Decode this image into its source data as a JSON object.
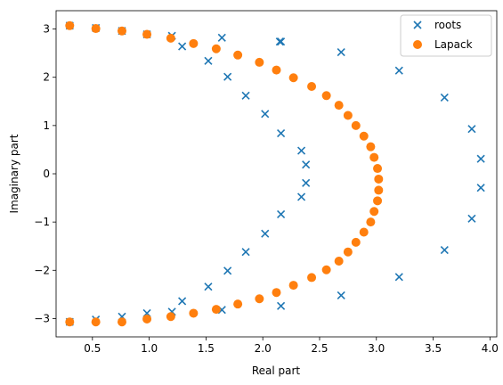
{
  "chart_data": {
    "type": "scatter",
    "xlabel": "Real part",
    "ylabel": "Imaginary part",
    "xlim": [
      0.18,
      4.06
    ],
    "ylim": [
      -3.38,
      3.38
    ],
    "xticks": [
      0.5,
      1.0,
      1.5,
      2.0,
      2.5,
      3.0,
      3.5,
      4.0
    ],
    "xtick_labels": [
      "0.5",
      "1.0",
      "1.5",
      "2.0",
      "2.5",
      "3.0",
      "3.5",
      "4.0"
    ],
    "yticks": [
      -3,
      -2,
      -1,
      0,
      1,
      2,
      3
    ],
    "ytick_labels": [
      "−3",
      "−2",
      "−1",
      "0",
      "1",
      "2",
      "3"
    ],
    "grid": false,
    "legend_position": "top-right",
    "series": [
      {
        "name": "roots",
        "marker": "x",
        "color": "#1f77b4",
        "x": [
          0.3,
          0.53,
          0.76,
          0.98,
          1.2,
          1.29,
          1.52,
          1.64,
          1.69,
          1.85,
          2.02,
          2.16,
          2.15,
          2.34,
          2.38,
          2.38,
          2.34,
          2.16,
          2.02,
          1.85,
          1.69,
          1.64,
          1.52,
          1.29,
          1.2,
          0.98,
          0.76,
          0.53,
          0.3,
          2.16,
          2.69,
          3.2,
          3.6,
          3.84,
          3.92,
          3.92,
          3.84,
          3.6,
          3.2,
          2.69,
          2.16
        ],
        "y": [
          3.07,
          3.02,
          2.96,
          2.89,
          2.86,
          2.64,
          2.34,
          2.82,
          2.01,
          1.62,
          1.24,
          0.84,
          2.74,
          0.48,
          0.19,
          -0.19,
          -0.48,
          -0.84,
          -1.24,
          -1.62,
          -2.01,
          -2.82,
          -2.34,
          -2.64,
          -2.86,
          -2.89,
          -2.96,
          -3.02,
          -3.07,
          -2.74,
          -2.52,
          -2.14,
          -1.58,
          -0.93,
          -0.29,
          0.31,
          0.93,
          1.58,
          2.14,
          2.52,
          2.74
        ]
      },
      {
        "name": "Lapack",
        "marker": "o",
        "color": "#ff7f0e",
        "x": [
          0.3,
          0.53,
          0.76,
          0.98,
          1.19,
          1.39,
          1.59,
          1.78,
          1.97,
          2.12,
          2.27,
          2.43,
          2.56,
          2.67,
          2.75,
          2.82,
          2.89,
          2.95,
          2.98,
          3.01,
          3.02,
          3.02,
          3.01,
          2.98,
          2.95,
          2.89,
          2.82,
          2.75,
          2.67,
          2.56,
          2.43,
          2.27,
          2.12,
          1.97,
          1.78,
          1.59,
          1.39,
          1.19,
          0.98,
          0.76,
          0.53,
          0.3
        ],
        "y": [
          3.07,
          3.01,
          2.96,
          2.89,
          2.81,
          2.7,
          2.59,
          2.46,
          2.31,
          2.15,
          1.99,
          1.81,
          1.62,
          1.42,
          1.21,
          1.0,
          0.78,
          0.56,
          0.34,
          0.11,
          -0.11,
          -0.34,
          -0.56,
          -0.78,
          -1.0,
          -1.21,
          -1.42,
          -1.62,
          -1.81,
          -1.99,
          -2.15,
          -2.31,
          -2.46,
          -2.59,
          -2.7,
          -2.81,
          -2.89,
          -2.96,
          -3.01,
          -3.07,
          -3.07,
          -3.07
        ]
      }
    ]
  }
}
